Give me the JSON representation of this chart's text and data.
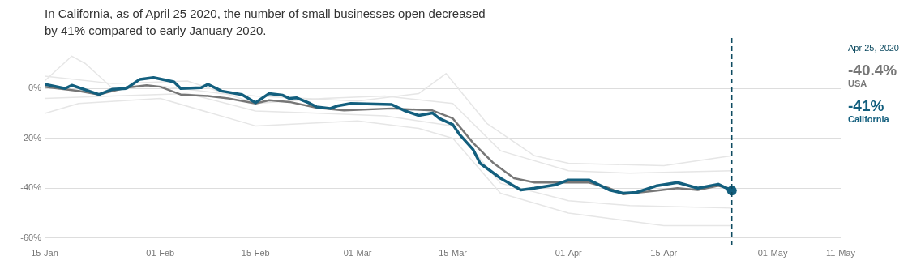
{
  "chart_data": {
    "type": "line",
    "title": "In California, as of April 25 2020, the number of small businesses open decreased by 41% compared to early January 2020.",
    "xlim": [
      "2020-01-15",
      "2020-05-11"
    ],
    "xticks": [
      {
        "value": "2020-01-15",
        "label": "15-Jan"
      },
      {
        "value": "2020-02-01",
        "label": "01-Feb"
      },
      {
        "value": "2020-02-15",
        "label": "15-Feb"
      },
      {
        "value": "2020-03-01",
        "label": "01-Mar"
      },
      {
        "value": "2020-03-15",
        "label": "15-Mar"
      },
      {
        "value": "2020-04-01",
        "label": "01-Apr"
      },
      {
        "value": "2020-04-15",
        "label": "15-Apr"
      },
      {
        "value": "2020-05-01",
        "label": "01-May"
      },
      {
        "value": "2020-05-11",
        "label": "11-May"
      }
    ],
    "ylim": [
      -63,
      17
    ],
    "yticks": [
      {
        "value": 0,
        "label": "0%"
      },
      {
        "value": -20,
        "label": "-20%"
      },
      {
        "value": -40,
        "label": "-40%"
      },
      {
        "value": -60,
        "label": "-60%"
      }
    ],
    "grid": "y",
    "legend": false,
    "marker": "none",
    "line_style": "solid",
    "ref_lines": [
      {
        "axis": "x",
        "value": "2020-04-25",
        "label": "Apr 25, 2020",
        "color": "#0d4a60",
        "line_style": "dashed"
      }
    ],
    "annotations": [
      "-40.4%",
      "-41%"
    ],
    "series": [
      {
        "color": "#e6e6e6",
        "x": [
          "2020-01-15",
          "2020-01-19",
          "2020-01-21",
          "2020-01-25",
          "2020-02-01",
          "2020-02-10",
          "2020-02-15",
          "2020-03-01",
          "2020-03-10",
          "2020-03-14",
          "2020-03-20",
          "2020-03-27",
          "2020-04-01",
          "2020-04-15",
          "2020-04-25"
        ],
        "values": [
          3,
          13,
          10,
          0,
          1,
          -2,
          -3,
          -5,
          -2,
          6,
          -14,
          -27,
          -30,
          -31,
          -27
        ]
      },
      {
        "color": "#e6e6e6",
        "x": [
          "2020-01-15",
          "2020-01-20",
          "2020-02-01",
          "2020-02-15",
          "2020-03-01",
          "2020-03-10",
          "2020-03-15",
          "2020-03-22",
          "2020-04-01",
          "2020-04-15",
          "2020-04-25"
        ],
        "values": [
          -10,
          -6,
          -4,
          -15,
          -13,
          -16,
          -20,
          -42,
          -50,
          -55,
          -55
        ]
      },
      {
        "color": "#e6e6e6",
        "x": [
          "2020-01-15",
          "2020-01-25",
          "2020-02-05",
          "2020-02-15",
          "2020-02-25",
          "2020-03-05",
          "2020-03-15",
          "2020-03-22",
          "2020-04-01",
          "2020-04-10",
          "2020-04-25"
        ],
        "values": [
          5,
          2,
          3,
          -6,
          -4,
          -3,
          -6,
          -25,
          -33,
          -34,
          -33
        ]
      },
      {
        "color": "#e6e6e6",
        "x": [
          "2020-01-15",
          "2020-01-25",
          "2020-02-05",
          "2020-02-15",
          "2020-02-25",
          "2020-03-05",
          "2020-03-15",
          "2020-03-22",
          "2020-04-01",
          "2020-04-10",
          "2020-04-25"
        ],
        "values": [
          -4,
          -3,
          -2,
          -9,
          -10,
          -11,
          -15,
          -38,
          -45,
          -47,
          -48
        ]
      },
      {
        "name": "USA",
        "color": "#777777",
        "x": [
          "2020-01-15",
          "2020-01-20",
          "2020-01-23",
          "2020-01-27",
          "2020-01-30",
          "2020-02-01",
          "2020-02-04",
          "2020-02-08",
          "2020-02-11",
          "2020-02-15",
          "2020-02-17",
          "2020-02-20",
          "2020-02-24",
          "2020-02-28",
          "2020-03-06",
          "2020-03-12",
          "2020-03-15",
          "2020-03-18",
          "2020-03-21",
          "2020-03-24",
          "2020-03-27",
          "2020-03-30",
          "2020-04-04",
          "2020-04-07",
          "2020-04-09",
          "2020-04-14",
          "2020-04-17",
          "2020-04-20",
          "2020-04-23",
          "2020-04-25"
        ],
        "values": [
          0.7,
          -1,
          -2.4,
          0.3,
          1.3,
          0.7,
          -2.4,
          -3,
          -4,
          -6,
          -4.7,
          -5.4,
          -7.7,
          -8.8,
          -8,
          -8.8,
          -12,
          -21.9,
          -30,
          -36,
          -37.7,
          -37.7,
          -37.7,
          -40,
          -42.4,
          -41,
          -40,
          -40.7,
          -39,
          -40.4
        ]
      },
      {
        "name": "California",
        "color": "#135f7e",
        "x": [
          "2020-01-15",
          "2020-01-18",
          "2020-01-19",
          "2020-01-23",
          "2020-01-25",
          "2020-01-27",
          "2020-01-29",
          "2020-01-31",
          "2020-02-03",
          "2020-02-04",
          "2020-02-07",
          "2020-02-08",
          "2020-02-10",
          "2020-02-13",
          "2020-02-15",
          "2020-02-17",
          "2020-02-19",
          "2020-02-20",
          "2020-02-21",
          "2020-02-23",
          "2020-02-24",
          "2020-02-26",
          "2020-02-27",
          "2020-02-29",
          "2020-03-06",
          "2020-03-08",
          "2020-03-10",
          "2020-03-12",
          "2020-03-13",
          "2020-03-15",
          "2020-03-16",
          "2020-03-18",
          "2020-03-19",
          "2020-03-22",
          "2020-03-25",
          "2020-03-27",
          "2020-03-30",
          "2020-04-01",
          "2020-04-04",
          "2020-04-07",
          "2020-04-09",
          "2020-04-11",
          "2020-04-14",
          "2020-04-17",
          "2020-04-20",
          "2020-04-23",
          "2020-04-25"
        ],
        "values": [
          1.7,
          0,
          1.3,
          -2.4,
          -0.3,
          0,
          3.7,
          4.4,
          2.7,
          0,
          0.3,
          1.7,
          -1,
          -2.4,
          -5.7,
          -2,
          -2.7,
          -4,
          -3.7,
          -6,
          -7.4,
          -8,
          -7,
          -6,
          -6.4,
          -9,
          -10.8,
          -9.8,
          -12,
          -14.5,
          -18.5,
          -24.6,
          -30,
          -36,
          -40.7,
          -40,
          -38.7,
          -36.7,
          -36.7,
          -40.7,
          -42,
          -41.7,
          -39,
          -37.7,
          -40,
          -38.4,
          -41
        ]
      },
      {
        "type": "scatter",
        "color": "#135f7e",
        "marker": "circle",
        "x": [
          "2020-04-25"
        ],
        "values": [
          -41
        ]
      }
    ]
  }
}
